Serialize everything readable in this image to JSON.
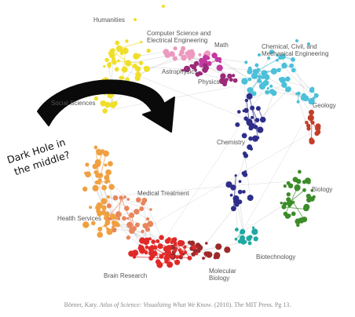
{
  "labels": {
    "humanities": "Humanities",
    "cs_line1": "Computer Science and",
    "cs_line2": "Electrical Engineering",
    "math": "Math",
    "chem_eng_line1": "Chemical, Civil, and",
    "chem_eng_line2": "Mechanical Engineering",
    "astrophysics": "Astrophysics",
    "physics": "Physics",
    "social_sciences": "Social Sciences",
    "geology": "Geology",
    "chemistry": "Chemistry",
    "biology": "Biology",
    "medical_treatment": "Medical Treatment",
    "health_services": "Health Services",
    "biotechnology": "Biotechnology",
    "brain_research": "Brain Research",
    "molecular_line1": "Molecular",
    "molecular_line2": "Biology"
  },
  "annotation": {
    "line1": "Dark Hole in",
    "line2": "the middle?"
  },
  "citation": {
    "author": "Börner, Katy. ",
    "title": "Atlas of Science: Visualizing What We Know",
    "rest": ". (2010). The MIT Press. Pg 13."
  },
  "colors": {
    "humanities": "#f0df2a",
    "cs": "#ec9ac0",
    "math": "#c23aa0",
    "physics": "#9b2a78",
    "engineering": "#4cc0d8",
    "geology": "#c23e2a",
    "biology": "#3c8c2a",
    "chemistry": "#2e2e8a",
    "biotech": "#1fa8a4",
    "molecular": "#9c2a2a",
    "brain": "#e02a28",
    "health": "#f0a040",
    "medical": "#e8855c",
    "edge": "#b5b5b5",
    "arrow": "#0a0a0a"
  }
}
